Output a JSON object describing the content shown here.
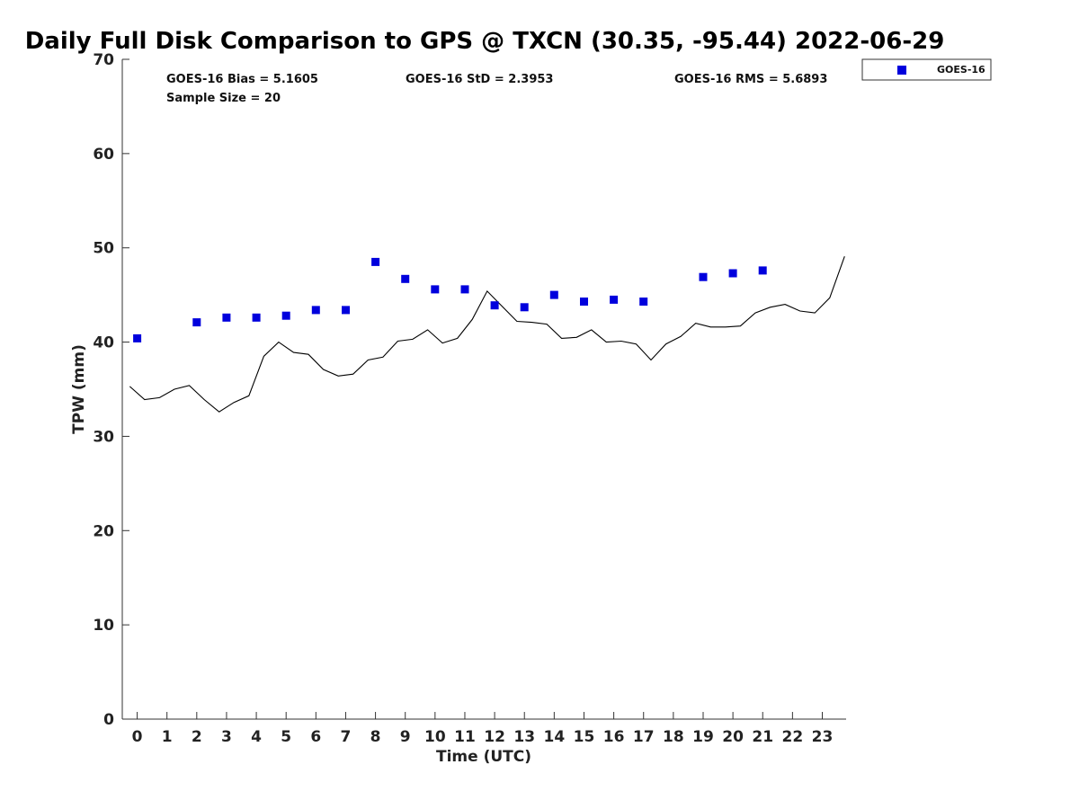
{
  "chart_data": {
    "type": "scatter",
    "title": "Daily Full Disk Comparison to GPS @ TXCN (30.35, -95.44) 2022-06-29",
    "xlabel": "Time (UTC)",
    "ylabel": "TPW (mm)",
    "xlim": [
      -0.5,
      23.8
    ],
    "ylim": [
      0,
      70
    ],
    "x_ticks": [
      0,
      1,
      2,
      3,
      4,
      5,
      6,
      7,
      8,
      9,
      10,
      11,
      12,
      13,
      14,
      15,
      16,
      17,
      18,
      19,
      20,
      21,
      22,
      23
    ],
    "y_ticks": [
      0,
      10,
      20,
      30,
      40,
      50,
      60,
      70
    ],
    "grid": false,
    "legend_position": "top-right",
    "stats": {
      "bias": "GOES-16 Bias = 5.1605",
      "std": "GOES-16 StD = 2.3953",
      "rms": "GOES-16 RMS = 5.6893",
      "sample": "Sample Size = 20"
    },
    "series": [
      {
        "name": "GOES-16",
        "kind": "scatter",
        "marker": "square",
        "color": "#0000dd",
        "x": [
          0,
          2,
          3,
          4,
          5,
          6,
          7,
          8,
          9,
          10,
          11,
          12,
          13,
          14,
          15,
          16,
          17,
          19,
          20,
          21
        ],
        "y": [
          40.4,
          42.1,
          42.6,
          42.6,
          42.8,
          43.4,
          43.4,
          48.5,
          46.7,
          45.6,
          45.6,
          43.9,
          43.7,
          45.0,
          44.3,
          44.5,
          44.3,
          46.9,
          47.3,
          47.6
        ]
      },
      {
        "kind": "line",
        "color": "#000000",
        "x": [
          -0.25,
          0.25,
          0.75,
          1.25,
          1.75,
          2.25,
          2.75,
          3.25,
          3.75,
          4.25,
          4.75,
          5.25,
          5.75,
          6.25,
          6.75,
          7.25,
          7.75,
          8.25,
          8.75,
          9.25,
          9.75,
          10.25,
          10.75,
          11.25,
          11.75,
          12.25,
          12.75,
          13.25,
          13.75,
          14.25,
          14.75,
          15.25,
          15.75,
          16.25,
          16.75,
          17.25,
          17.75,
          18.25,
          18.75,
          19.25,
          19.75,
          20.25,
          20.75,
          21.25,
          21.75,
          22.25,
          22.75,
          23.25,
          23.75
        ],
        "y": [
          35.3,
          33.9,
          34.1,
          35.0,
          35.4,
          33.9,
          32.6,
          33.6,
          34.3,
          38.5,
          40.0,
          38.9,
          38.7,
          37.1,
          36.4,
          36.6,
          38.1,
          38.4,
          40.1,
          40.3,
          41.3,
          39.9,
          40.4,
          42.4,
          45.4,
          43.8,
          42.2,
          42.1,
          41.9,
          40.4,
          40.5,
          41.3,
          40.0,
          40.1,
          39.8,
          38.1,
          39.8,
          40.6,
          42.0,
          41.6,
          41.6,
          41.7,
          43.1,
          43.7,
          44.0,
          43.3,
          43.1,
          44.7,
          49.1
        ]
      }
    ]
  }
}
